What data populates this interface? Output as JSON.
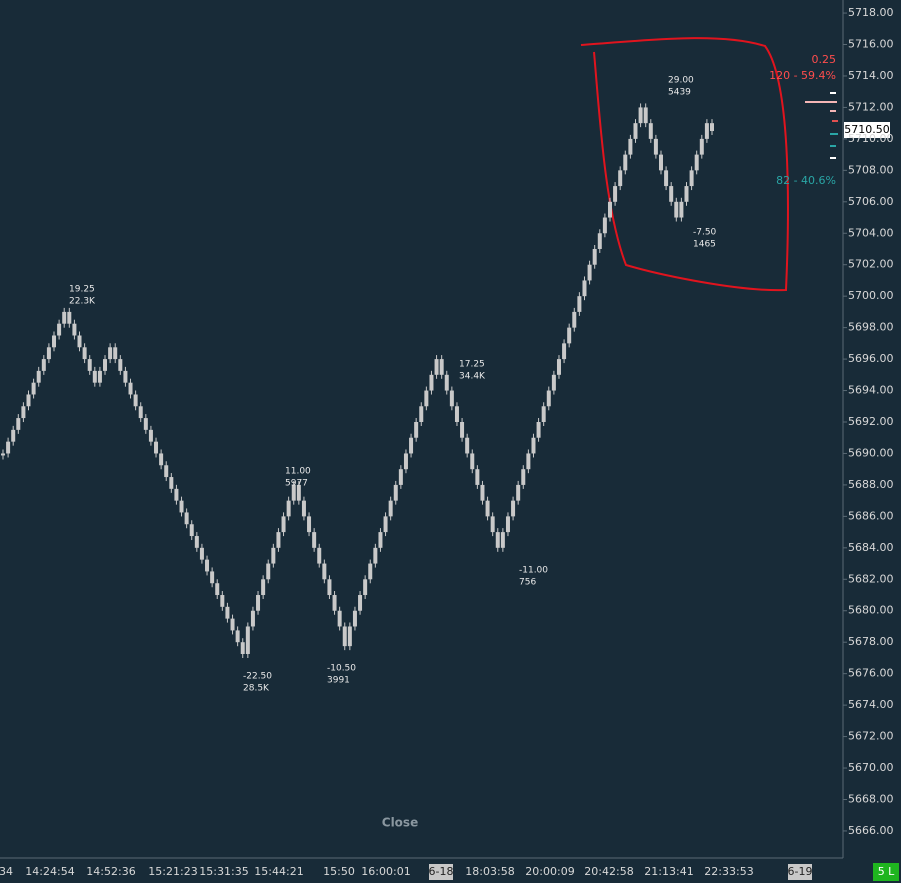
{
  "chart_data": {
    "type": "renko",
    "values": [
      5690,
      5690.75,
      5691.5,
      5692.25,
      5693,
      5693.75,
      5694.5,
      5695.25,
      5696,
      5696.75,
      5697.5,
      5698.25,
      5699,
      5698.25,
      5697.5,
      5696.75,
      5696,
      5695.25,
      5694.5,
      5695.25,
      5696,
      5696.75,
      5696,
      5695.25,
      5694.5,
      5693.75,
      5693,
      5692.25,
      5691.5,
      5690.75,
      5690,
      5689.25,
      5688.5,
      5687.75,
      5687,
      5686.25,
      5685.5,
      5684.75,
      5684,
      5683.25,
      5682.5,
      5681.75,
      5681,
      5680.25,
      5679.5,
      5678.75,
      5678,
      5677.25,
      5679,
      5680,
      5681,
      5682,
      5683,
      5684,
      5685,
      5686,
      5687,
      5688,
      5687,
      5686,
      5685,
      5684,
      5683,
      5682,
      5681,
      5680,
      5679,
      5677.75,
      5679,
      5680,
      5681,
      5682,
      5683,
      5684,
      5685,
      5686,
      5687,
      5688,
      5689,
      5690,
      5691,
      5692,
      5693,
      5694,
      5695,
      5696,
      5695,
      5694,
      5693,
      5692,
      5691,
      5690,
      5689,
      5688,
      5687,
      5686,
      5685,
      5684,
      5685,
      5686,
      5687,
      5688,
      5689,
      5690,
      5691,
      5692,
      5693,
      5694,
      5695,
      5696,
      5697,
      5698,
      5699,
      5700,
      5701,
      5702,
      5703,
      5704,
      5705,
      5706,
      5707,
      5708,
      5709,
      5710,
      5711,
      5712,
      5711,
      5710,
      5709,
      5708,
      5707,
      5706,
      5705,
      5706,
      5707,
      5708,
      5709,
      5710,
      5711,
      5710.5
    ],
    "color": "#c9c9c9",
    "ylim": [
      5664.28,
      5718.83
    ],
    "yticks": [
      {
        "value": 5666,
        "label": "5666.00"
      },
      {
        "value": 5668,
        "label": "5668.00"
      },
      {
        "value": 5670,
        "label": "5670.00"
      },
      {
        "value": 5672,
        "label": "5672.00"
      },
      {
        "value": 5674,
        "label": "5674.00"
      },
      {
        "value": 5676,
        "label": "5676.00"
      },
      {
        "value": 5678,
        "label": "5678.00"
      },
      {
        "value": 5680,
        "label": "5680.00"
      },
      {
        "value": 5682,
        "label": "5682.00"
      },
      {
        "value": 5684,
        "label": "5684.00"
      },
      {
        "value": 5686,
        "label": "5686.00"
      },
      {
        "value": 5688,
        "label": "5688.00"
      },
      {
        "value": 5690,
        "label": "5690.00"
      },
      {
        "value": 5692,
        "label": "5692.00"
      },
      {
        "value": 5694,
        "label": "5694.00"
      },
      {
        "value": 5696,
        "label": "5696.00"
      },
      {
        "value": 5698,
        "label": "5698.00"
      },
      {
        "value": 5700,
        "label": "5700.00"
      },
      {
        "value": 5702,
        "label": "5702.00"
      },
      {
        "value": 5704,
        "label": "5704.00"
      },
      {
        "value": 5706,
        "label": "5706.00"
      },
      {
        "value": 5708,
        "label": "5708.00"
      },
      {
        "value": 5710,
        "label": "5710.00"
      },
      {
        "value": 5712,
        "label": "5712.00"
      },
      {
        "value": 5714,
        "label": "5714.00"
      },
      {
        "value": 5716,
        "label": "5716.00"
      },
      {
        "value": 5718,
        "label": "5718.00"
      }
    ],
    "x_labels": [
      "34",
      "14:24:54",
      "14:52:36",
      "15:21:23",
      "15:31:35",
      "15:44:21",
      "15:50",
      "16:00:01",
      "6-18",
      "18:03:58",
      "20:00:09",
      "20:42:58",
      "21:13:41",
      "22:33:53",
      "6-19"
    ],
    "annotations": [
      [
        "19.25",
        "22.3K"
      ],
      [
        "-22.50",
        "28.5K"
      ],
      [
        "11.00",
        "5977"
      ],
      [
        "-10.50",
        "3991"
      ],
      [
        "17.25",
        "34.4K"
      ],
      [
        "-11.00",
        "756"
      ],
      [
        "29.00",
        "5439"
      ],
      [
        "-7.50",
        "1465"
      ]
    ],
    "tick_size": "0.25",
    "ask_label": "120 - 59.4%",
    "bid_label": "82 - 40.6%",
    "last_price_label": "5710.50",
    "footer_label": "Close",
    "status_label": "5 L"
  }
}
